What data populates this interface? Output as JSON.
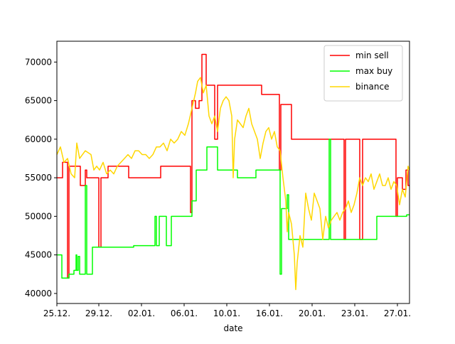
{
  "chart_data": {
    "type": "line",
    "x_label": "date",
    "xlim": [
      0,
      496
    ],
    "xticks": [
      {
        "value": 0,
        "label": "25.12."
      },
      {
        "value": 59,
        "label": "29.12."
      },
      {
        "value": 119,
        "label": "02.01."
      },
      {
        "value": 179,
        "label": "06.01."
      },
      {
        "value": 239,
        "label": "10.01."
      },
      {
        "value": 299,
        "label": "16.01."
      },
      {
        "value": 359,
        "label": "20.01."
      },
      {
        "value": 419,
        "label": "23.01."
      },
      {
        "value": 479,
        "label": "27.01."
      }
    ],
    "ylim": [
      38700,
      72700
    ],
    "yticks": [
      40000,
      45000,
      50000,
      55000,
      60000,
      65000,
      70000
    ],
    "grid": false,
    "legend": "upper right",
    "series": [
      {
        "name": "min sell",
        "color": "#ff0000",
        "x": [
          0,
          8,
          8,
          15,
          15,
          17,
          17,
          33,
          33,
          40,
          40,
          42,
          42,
          59,
          59,
          62,
          62,
          72,
          72,
          101,
          101,
          146,
          146,
          188,
          188,
          190,
          190,
          195,
          195,
          200,
          200,
          204,
          204,
          210,
          210,
          222,
          222,
          226,
          226,
          288,
          288,
          313,
          313,
          315,
          315,
          330,
          330,
          404,
          404,
          406,
          406,
          426,
          426,
          430,
          430,
          477,
          477,
          479,
          479,
          486,
          486,
          491,
          491,
          494,
          494,
          496
        ],
        "values": [
          55000,
          55000,
          57000,
          57000,
          42000,
          42000,
          56500,
          56500,
          54000,
          54000,
          56000,
          56000,
          55000,
          55000,
          46000,
          46000,
          55000,
          55000,
          56500,
          56500,
          55000,
          55000,
          56500,
          56500,
          50500,
          50500,
          65000,
          65000,
          64000,
          64000,
          65000,
          65000,
          71000,
          71000,
          67000,
          67000,
          60000,
          60000,
          67000,
          67000,
          65800,
          65800,
          56000,
          56000,
          64500,
          64500,
          60000,
          60000,
          47000,
          47000,
          60000,
          60000,
          47000,
          47000,
          60000,
          60000,
          50000,
          50000,
          55000,
          55000,
          53500,
          53500,
          56000,
          56000,
          54000,
          54000
        ]
      },
      {
        "name": "max buy",
        "color": "#00ff00",
        "x": [
          0,
          7,
          7,
          17,
          17,
          24,
          24,
          27,
          27,
          28,
          28,
          30,
          30,
          32,
          32,
          40,
          40,
          42,
          42,
          50,
          50,
          108,
          108,
          138,
          138,
          140,
          140,
          144,
          144,
          154,
          154,
          161,
          161,
          190,
          190,
          196,
          196,
          211,
          211,
          226,
          226,
          254,
          254,
          280,
          280,
          314,
          314,
          316,
          316,
          324,
          324,
          326,
          326,
          383,
          383,
          385,
          385,
          450,
          450,
          492,
          492,
          496
        ],
        "values": [
          45000,
          45000,
          42000,
          42000,
          42500,
          42500,
          43000,
          43000,
          45000,
          45000,
          43000,
          43000,
          44800,
          44800,
          42500,
          42500,
          54000,
          54000,
          42500,
          42500,
          46000,
          46000,
          46200,
          46200,
          50000,
          50000,
          46200,
          46200,
          50000,
          50000,
          46200,
          46200,
          50000,
          50000,
          52000,
          52000,
          56000,
          56000,
          59000,
          59000,
          56000,
          56000,
          55000,
          55000,
          56000,
          56000,
          42500,
          42500,
          51000,
          51000,
          52800,
          52800,
          47000,
          47000,
          60000,
          60000,
          47000,
          47000,
          50000,
          50000,
          50200,
          50200
        ]
      },
      {
        "name": "binance",
        "color": "#ffd700",
        "x": [
          0,
          5,
          10,
          15,
          20,
          25,
          28,
          32,
          40,
          48,
          52,
          56,
          60,
          65,
          70,
          75,
          80,
          85,
          90,
          95,
          100,
          105,
          110,
          115,
          120,
          125,
          130,
          135,
          140,
          145,
          150,
          155,
          160,
          165,
          170,
          175,
          180,
          185,
          190,
          195,
          198,
          202,
          206,
          210,
          214,
          218,
          222,
          226,
          230,
          234,
          238,
          242,
          246,
          248,
          250,
          254,
          258,
          262,
          266,
          270,
          274,
          278,
          282,
          286,
          290,
          294,
          298,
          302,
          306,
          310,
          314,
          318,
          322,
          324,
          326,
          330,
          334,
          336,
          338,
          342,
          346,
          350,
          354,
          358,
          362,
          366,
          370,
          374,
          378,
          382,
          386,
          390,
          394,
          398,
          402,
          406,
          410,
          414,
          418,
          422,
          426,
          430,
          434,
          438,
          442,
          446,
          450,
          454,
          458,
          462,
          466,
          470,
          474,
          478,
          482,
          486,
          490,
          494,
          496
        ],
        "values": [
          58000,
          59000,
          57000,
          57500,
          55500,
          55000,
          59500,
          57500,
          58500,
          58000,
          56000,
          56500,
          56000,
          57000,
          55500,
          56000,
          55500,
          56500,
          57000,
          57500,
          58000,
          57500,
          58500,
          58500,
          58000,
          58000,
          57500,
          58000,
          59000,
          59000,
          59500,
          58500,
          60000,
          59500,
          60000,
          61000,
          60500,
          62000,
          64000,
          66000,
          67500,
          68000,
          66000,
          67000,
          63000,
          62000,
          63000,
          61000,
          64000,
          65000,
          65500,
          65000,
          63000,
          55000,
          60000,
          62500,
          62000,
          61500,
          63000,
          64000,
          62000,
          61000,
          60000,
          57500,
          59500,
          61000,
          61500,
          60000,
          61000,
          59000,
          58500,
          55000,
          52000,
          48000,
          50500,
          49000,
          45000,
          40500,
          44000,
          47500,
          46000,
          53000,
          51000,
          49500,
          53000,
          52000,
          51000,
          47000,
          50000,
          48500,
          49500,
          50000,
          50500,
          49500,
          50500,
          51000,
          52000,
          50500,
          51500,
          53000,
          55000,
          54000,
          55000,
          54500,
          55500,
          53500,
          54500,
          55500,
          54000,
          54000,
          55000,
          53500,
          54500,
          54000,
          51500,
          53500,
          52500,
          56500,
          56000
        ]
      }
    ]
  }
}
